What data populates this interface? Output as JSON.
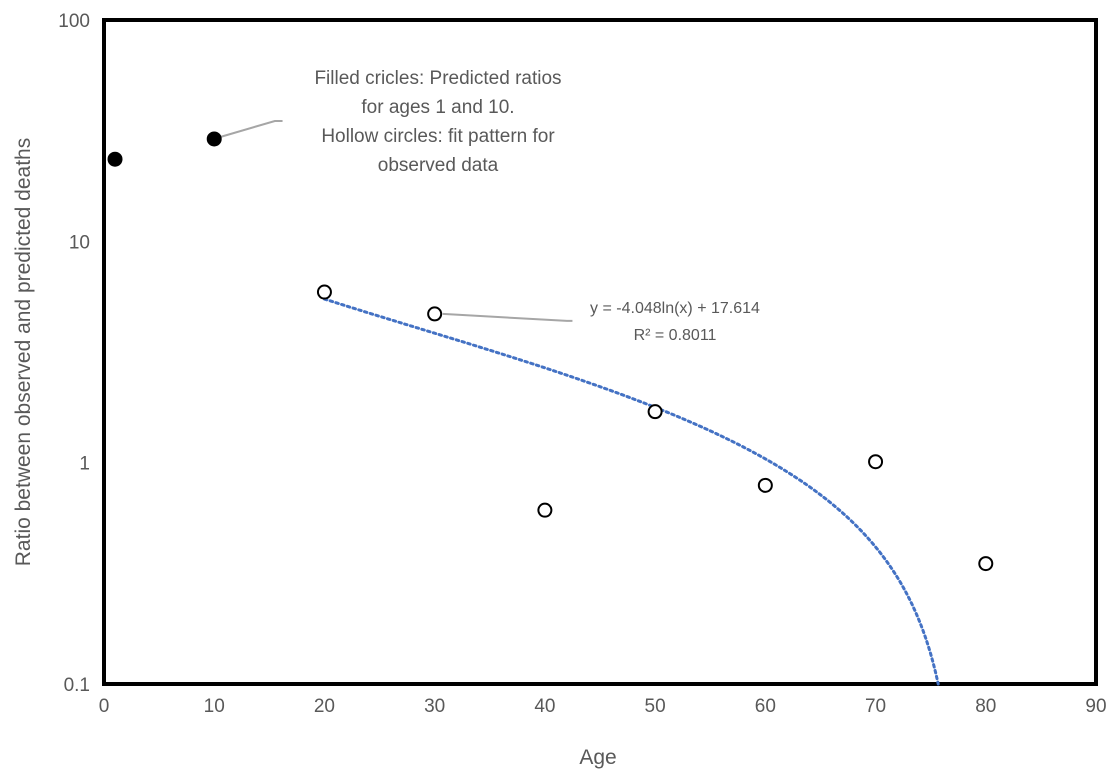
{
  "chart_data": {
    "type": "scatter",
    "xlabel": "Age",
    "ylabel": "Ratio between observed and predicted deaths",
    "xlim": [
      0,
      90
    ],
    "ylim": [
      0.1,
      100
    ],
    "y_scale": "log",
    "grid": false,
    "x_ticks": [
      "0",
      "10",
      "20",
      "30",
      "40",
      "50",
      "60",
      "70",
      "80",
      "90"
    ],
    "y_ticks": [
      "0.1",
      "1",
      "10",
      "100"
    ],
    "series": [
      {
        "marker": "filled-circle",
        "points": [
          {
            "x": 1,
            "y": 23.5
          },
          {
            "x": 10,
            "y": 29
          }
        ]
      },
      {
        "marker": "hollow-circle",
        "points": [
          {
            "x": 20,
            "y": 5.9
          },
          {
            "x": 30,
            "y": 4.7
          },
          {
            "x": 40,
            "y": 0.61
          },
          {
            "x": 50,
            "y": 1.7
          },
          {
            "x": 60,
            "y": 0.79
          },
          {
            "x": 70,
            "y": 1.01
          },
          {
            "x": 80,
            "y": 0.35
          }
        ]
      }
    ],
    "trendline": {
      "type": "logarithmic",
      "a": -4.048,
      "b": 17.614,
      "x_from": 20,
      "color": "#4472C4",
      "equation_label": "y = -4.048ln(x) + 17.614",
      "r2_label": "R² = 0.8011"
    },
    "annotations": [
      {
        "lines": [
          "Filled cricles: Predicted ratios",
          "for ages 1 and 10.",
          "Hollow circles: fit pattern for",
          "observed data"
        ]
      }
    ]
  }
}
